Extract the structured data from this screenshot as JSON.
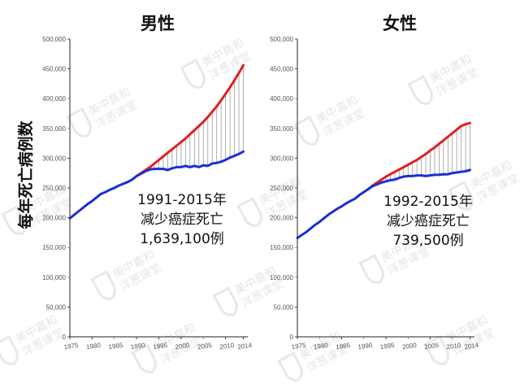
{
  "ylabel": "每年死亡病例数",
  "watermark": [
    "美中嘉和",
    "洋葱课堂"
  ],
  "chart_data": [
    {
      "type": "line",
      "title": "男性",
      "annotation": [
        "1991-2015年",
        "减少癌症死亡",
        "1,639,100例"
      ],
      "xlim": [
        1975,
        2015
      ],
      "ylim": [
        0,
        500000
      ],
      "x_ticks": [
        "1975",
        "1980",
        "1985",
        "1990",
        "1995",
        "2000",
        "2005",
        "2010",
        "2014"
      ],
      "y_ticks": [
        "0",
        "50,000",
        "100,000",
        "150,000",
        "200,000",
        "250,000",
        "300,000",
        "350,000",
        "400,000",
        "450,000",
        "500,000"
      ],
      "grid": false,
      "colors": {
        "expected": "#e02020",
        "actual": "#1c2fd1",
        "gap": "#9a9a9a"
      },
      "series": [
        {
          "key": "actual",
          "x": [
            1975,
            1976,
            1977,
            1978,
            1979,
            1980,
            1981,
            1982,
            1983,
            1984,
            1985,
            1986,
            1987,
            1988,
            1989,
            1990,
            1991,
            1992,
            1993,
            1994,
            1995,
            1996,
            1997,
            1998,
            1999,
            2000,
            2001,
            2002,
            2003,
            2004,
            2005,
            2006,
            2007,
            2008,
            2009,
            2010,
            2011,
            2012,
            2013,
            2014
          ],
          "values": [
            199000,
            205000,
            211000,
            217000,
            223000,
            228000,
            234000,
            240000,
            243000,
            247000,
            250000,
            254000,
            257000,
            260000,
            264000,
            270000,
            274000,
            278000,
            281000,
            282000,
            282000,
            282000,
            280000,
            283000,
            285000,
            285000,
            287000,
            285000,
            287000,
            285000,
            288000,
            287000,
            291000,
            292000,
            294000,
            297000,
            301000,
            304000,
            307000,
            311000
          ]
        },
        {
          "key": "expected",
          "x": [
            1990,
            1991,
            1992,
            1993,
            1994,
            1995,
            1996,
            1997,
            1998,
            1999,
            2000,
            2001,
            2002,
            2003,
            2004,
            2005,
            2006,
            2007,
            2008,
            2009,
            2010,
            2011,
            2012,
            2013,
            2014
          ],
          "values": [
            270000,
            275000,
            280000,
            285000,
            291000,
            297000,
            303000,
            309000,
            315000,
            321000,
            327000,
            333000,
            340000,
            347000,
            354000,
            361000,
            369000,
            378000,
            387000,
            397000,
            408000,
            419000,
            431000,
            443000,
            456000
          ]
        }
      ]
    },
    {
      "type": "line",
      "title": "女性",
      "annotation": [
        "1992-2015年",
        "减少癌症死亡",
        "739,500例"
      ],
      "xlim": [
        1975,
        2015
      ],
      "ylim": [
        0,
        500000
      ],
      "x_ticks": [
        "1975",
        "1980",
        "1985",
        "1990",
        "1995",
        "2000",
        "2005",
        "2010",
        "2014"
      ],
      "y_ticks": [
        "0",
        "50,000",
        "100,000",
        "150,000",
        "200,000",
        "250,000",
        "300,000",
        "350,000",
        "400,000",
        "450,000",
        "500,000"
      ],
      "grid": false,
      "colors": {
        "expected": "#e02020",
        "actual": "#1c2fd1",
        "gap": "#9a9a9a"
      },
      "series": [
        {
          "key": "actual",
          "x": [
            1975,
            1976,
            1977,
            1978,
            1979,
            1980,
            1981,
            1982,
            1983,
            1984,
            1985,
            1986,
            1987,
            1988,
            1989,
            1990,
            1991,
            1992,
            1993,
            1994,
            1995,
            1996,
            1997,
            1998,
            1999,
            2000,
            2001,
            2002,
            2003,
            2004,
            2005,
            2006,
            2007,
            2008,
            2009,
            2010,
            2011,
            2012,
            2013,
            2014
          ],
          "values": [
            166000,
            171000,
            176000,
            182000,
            188000,
            193000,
            199000,
            205000,
            210000,
            215000,
            219000,
            224000,
            228000,
            232000,
            238000,
            243000,
            248000,
            253000,
            256000,
            259000,
            261000,
            263000,
            264000,
            267000,
            269000,
            270000,
            270000,
            271000,
            271000,
            270000,
            271000,
            272000,
            272000,
            273000,
            273000,
            275000,
            276000,
            277000,
            278000,
            280000
          ]
        },
        {
          "key": "expected",
          "x": [
            1991,
            1992,
            1993,
            1994,
            1995,
            1996,
            1997,
            1998,
            1999,
            2000,
            2001,
            2002,
            2003,
            2004,
            2005,
            2006,
            2007,
            2008,
            2009,
            2010,
            2011,
            2012,
            2013,
            2014
          ],
          "values": [
            248000,
            254000,
            259000,
            264000,
            269000,
            273000,
            277000,
            281000,
            285000,
            289000,
            293000,
            297000,
            302000,
            307000,
            313000,
            318000,
            324000,
            330000,
            336000,
            342000,
            348000,
            354000,
            357000,
            359000
          ]
        }
      ]
    }
  ]
}
